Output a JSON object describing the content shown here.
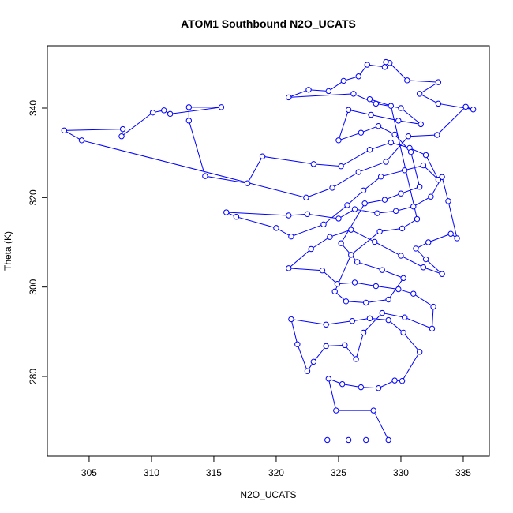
{
  "chart_data": {
    "type": "line",
    "title": "ATOM1 Southbound N2O_UCATS",
    "x_label": "N2O_UCATS",
    "y_label": "Theta (K)",
    "color": "#0000ff",
    "markers": true,
    "grid": false,
    "xlim": [
      301.65,
      337.09
    ],
    "ylim": [
      262.18,
      353.94
    ],
    "xticks": [
      305,
      310,
      315,
      320,
      325,
      330,
      335
    ],
    "yticks": [
      280,
      300,
      320,
      340
    ],
    "x": [
      324.1,
      325.8,
      327.2,
      329.0,
      327.8,
      324.8,
      324.2,
      325.3,
      326.8,
      328.2,
      329.5,
      330.1,
      331.5,
      330.2,
      329.0,
      327.5,
      326.1,
      324.0,
      321.2,
      321.7,
      322.5,
      323.0,
      324.0,
      325.5,
      326.4,
      327.0,
      328.5,
      330.3,
      332.5,
      332.6,
      331.0,
      329.8,
      328.0,
      326.3,
      324.9,
      323.7,
      321.0,
      322.8,
      324.3,
      326.0,
      327.9,
      330.0,
      331.8,
      333.3,
      332.0,
      331.2,
      332.2,
      334.0,
      334.5,
      333.8,
      333.3,
      332.4,
      331.0,
      329.6,
      328.1,
      326.3,
      325.0,
      322.5,
      321.0,
      316.0,
      316.8,
      320.0,
      321.2,
      323.8,
      325.7,
      327.0,
      328.4,
      330.3,
      331.8,
      333.0,
      332.0,
      330.7,
      329.2,
      327.5,
      325.2,
      323.0,
      318.9,
      317.7,
      314.3,
      313.0,
      313.0,
      315.6,
      311.5,
      311.0,
      310.1,
      307.6,
      307.7,
      303.0,
      304.4,
      322.4,
      324.5,
      326.6,
      328.8,
      330.6,
      332.9,
      335.2,
      335.8,
      333.0,
      331.5,
      333.0,
      330.5,
      329.1,
      328.8,
      328.7,
      327.3,
      326.6,
      325.4,
      324.2,
      322.6,
      321.0,
      326.2,
      328.0,
      330.0,
      331.6,
      329.8,
      327.6,
      325.8,
      325.0,
      326.8,
      328.2,
      329.5,
      330.8,
      331.5,
      330.0,
      328.7,
      327.1,
      325.2,
      326.5,
      328.5,
      330.2,
      329.0,
      327.2,
      325.6,
      324.7,
      326.0,
      328.3,
      330.1,
      331.3,
      329.2,
      327.5
    ],
    "values": [
      265.8,
      265.8,
      265.8,
      265.8,
      272.4,
      272.4,
      279.5,
      278.3,
      277.6,
      277.4,
      279.1,
      279.0,
      285.5,
      289.8,
      292.6,
      293.0,
      292.4,
      291.6,
      292.8,
      287.2,
      281.2,
      283.3,
      286.8,
      287.0,
      283.9,
      289.8,
      294.2,
      293.2,
      290.7,
      295.6,
      298.5,
      299.5,
      300.2,
      301.0,
      300.7,
      303.7,
      304.2,
      308.5,
      311.2,
      312.8,
      310.1,
      307.0,
      304.4,
      302.9,
      306.2,
      308.6,
      310.0,
      311.9,
      310.9,
      319.2,
      324.6,
      320.2,
      318.0,
      317.0,
      316.5,
      317.4,
      315.3,
      316.3,
      316.0,
      316.7,
      315.7,
      313.2,
      311.3,
      314.0,
      318.3,
      321.6,
      324.7,
      326.1,
      327.2,
      324.0,
      329.5,
      331.1,
      332.3,
      330.7,
      327.0,
      327.5,
      329.2,
      323.2,
      324.8,
      337.2,
      340.2,
      340.2,
      338.7,
      339.5,
      339.0,
      333.7,
      335.3,
      335.0,
      332.8,
      320.0,
      322.2,
      325.7,
      328.0,
      333.7,
      334.0,
      340.3,
      339.7,
      341.0,
      343.2,
      345.8,
      346.2,
      350.1,
      350.3,
      349.2,
      349.7,
      347.1,
      346.1,
      343.8,
      344.1,
      342.4,
      343.2,
      341.0,
      340.0,
      336.4,
      337.2,
      338.5,
      339.6,
      332.8,
      334.5,
      336.0,
      334.1,
      330.2,
      322.4,
      320.9,
      319.5,
      318.7,
      309.8,
      305.6,
      303.8,
      302.0,
      297.2,
      296.5,
      296.8,
      299.0,
      307.2,
      312.4,
      313.1,
      315.2,
      340.5,
      342.0
    ]
  }
}
